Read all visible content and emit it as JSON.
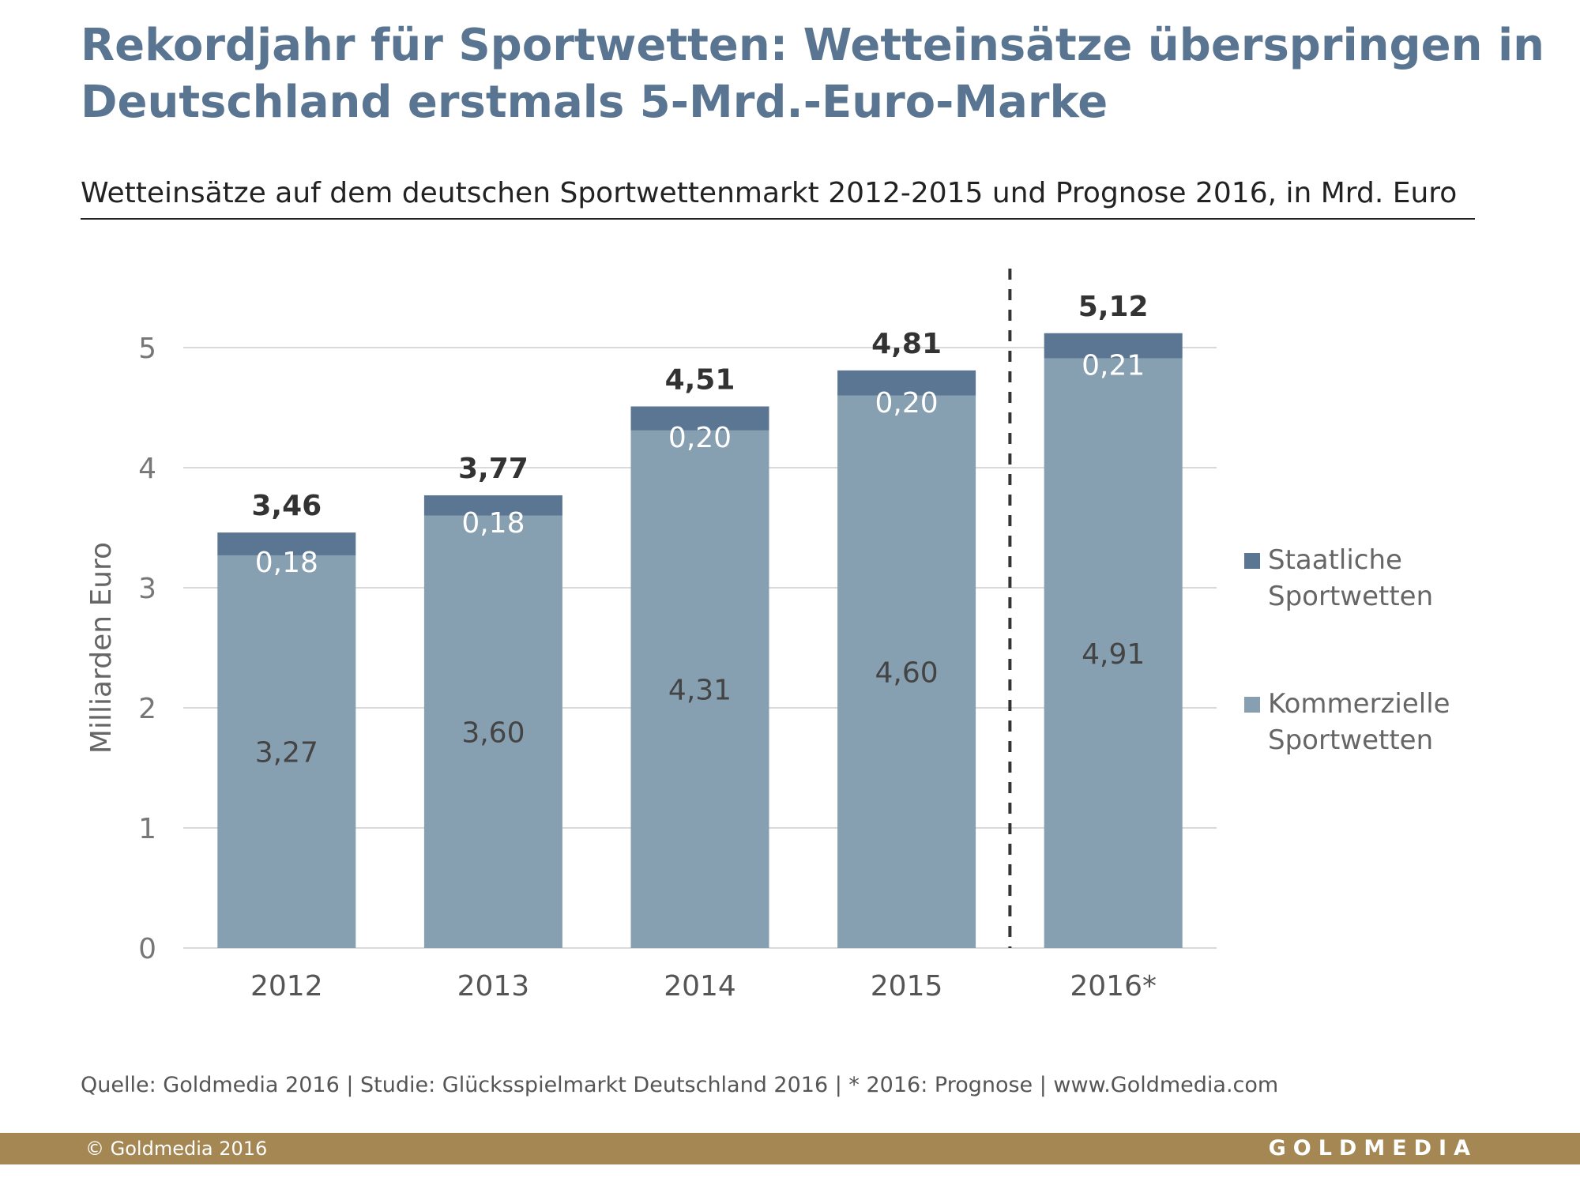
{
  "title": "Rekordjahr für Sportwetten: Wetteinsätze überspringen in Deutschland erstmals 5-Mrd.-Euro-Marke",
  "subtitle": "Wetteinsätze auf dem deutschen Sportwettenmarkt 2012-2015 und Prognose 2016, in Mrd. Euro",
  "colors": {
    "staatlich": "#5a7693",
    "kommerziell": "#869fb1",
    "title": "#597591",
    "footer": "#a48753"
  },
  "chart_data": {
    "type": "bar",
    "stacked": true,
    "categories": [
      "2012",
      "2013",
      "2014",
      "2015",
      "2016*"
    ],
    "series": [
      {
        "name": "Kommerzielle Sportwetten",
        "values": [
          3.27,
          3.6,
          4.31,
          4.6,
          4.91
        ],
        "labels": [
          "3,27",
          "3,60",
          "4,31",
          "4,60",
          "4,91"
        ]
      },
      {
        "name": "Staatliche Sportwetten",
        "values": [
          0.18,
          0.18,
          0.2,
          0.2,
          0.21
        ],
        "labels": [
          "0,18",
          "0,18",
          "0,20",
          "0,20",
          "0,21"
        ]
      }
    ],
    "totals": [
      3.46,
      3.77,
      4.51,
      4.81,
      5.12
    ],
    "total_labels": [
      "3,46",
      "3,77",
      "4,51",
      "4,81",
      "5,12"
    ],
    "ylabel": "Milliarden Euro",
    "ylim": [
      0,
      5
    ],
    "yticks": [
      0,
      1,
      2,
      3,
      4,
      5
    ],
    "forecast_separator_after": "2015",
    "legend": [
      {
        "name": "Staatliche Sportwetten",
        "line1": "Staatliche",
        "line2": "Sportwetten"
      },
      {
        "name": "Kommerzielle Sportwetten",
        "line1": "Kommerzielle",
        "line2": "Sportwetten"
      }
    ]
  },
  "source": "Quelle: Goldmedia 2016 | Studie: Glücksspielmarkt Deutschland 2016 | * 2016: Prognose  |  www.Goldmedia.com",
  "footer": {
    "copyright": "© Goldmedia 2016",
    "brand": "GOLDMEDIA"
  }
}
